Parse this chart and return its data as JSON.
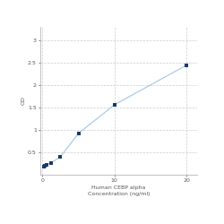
{
  "x": [
    0.156,
    0.313,
    0.625,
    1.25,
    2.5,
    5,
    10,
    20
  ],
  "y": [
    0.176,
    0.202,
    0.229,
    0.268,
    0.403,
    0.922,
    1.561,
    2.443
  ],
  "line_color": "#aacce8",
  "marker_color": "#1a3a6b",
  "marker_size": 3.5,
  "xlabel_line1": "Human CEBP alpha",
  "xlabel_line2": "Concentration (ng/ml)",
  "ylabel": "OD",
  "xlim": [
    -0.3,
    21.5
  ],
  "ylim": [
    0,
    3.3
  ],
  "xticks": [
    0,
    10,
    20
  ],
  "yticks": [
    0.5,
    1,
    1.5,
    2,
    2.5,
    3
  ],
  "ytick_labels": [
    "0.5",
    "1",
    "1.5",
    "2",
    "2.5",
    "3"
  ],
  "grid_color": "#cccccc",
  "background_color": "#ffffff",
  "label_fontsize": 4.5,
  "tick_fontsize": 4.5,
  "spine_color": "#aaaaaa"
}
